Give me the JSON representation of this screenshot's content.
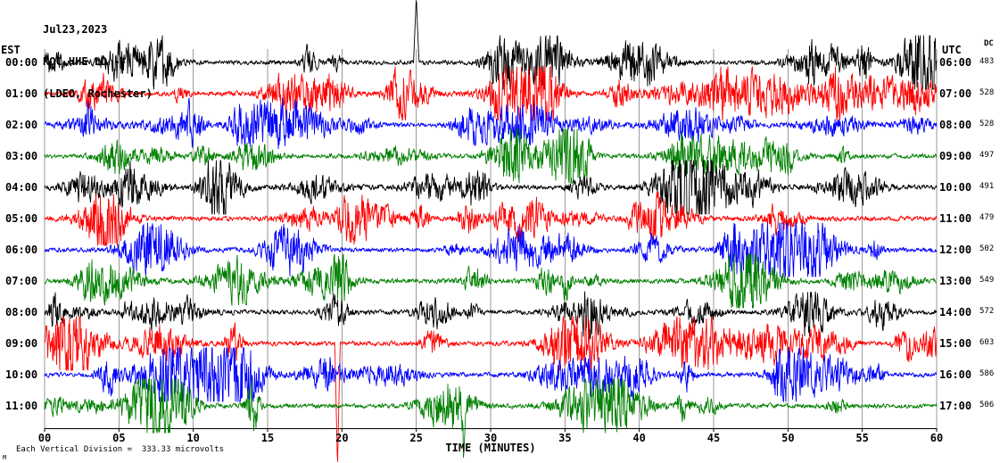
{
  "title": {
    "date": "Jul23,2023",
    "station": "ROC HHE LD --",
    "network": "(LDEO, Rochester)"
  },
  "axes": {
    "left_header": "EST",
    "right_header": "UTC",
    "dc_header": "DC",
    "xlabel": "TIME (MINUTES)",
    "x_ticks": [
      "00",
      "05",
      "10",
      "15",
      "20",
      "25",
      "30",
      "35",
      "40",
      "45",
      "50",
      "55",
      "60"
    ]
  },
  "footer": {
    "scale_note": "Each Vertical Division =  333.33 microvolts",
    "corner_mark": "M"
  },
  "colors": {
    "black": "#000000",
    "red": "#ff0000",
    "blue": "#0000ff",
    "green": "#008000"
  },
  "chart_data": {
    "type": "line",
    "subtype": "seismogram-helicorder",
    "title": "ROC HHE LD -- (LDEO, Rochester) Jul23,2023",
    "xlabel": "TIME (MINUTES)",
    "x_range_minutes": [
      0,
      60
    ],
    "x_tick_interval_minutes": 5,
    "minutes_per_row": 60,
    "vertical_division_microvolts": 333.33,
    "waveform_note": "Continuous high-frequency seismic noise with frequent burst events on every trace; exact sample values not resolvable from image.",
    "rows": [
      {
        "est": "00:00",
        "utc": "06:00",
        "dc": 483,
        "color": "black"
      },
      {
        "est": "01:00",
        "utc": "07:00",
        "dc": 528,
        "color": "red"
      },
      {
        "est": "02:00",
        "utc": "08:00",
        "dc": 528,
        "color": "blue"
      },
      {
        "est": "03:00",
        "utc": "09:00",
        "dc": 497,
        "color": "green"
      },
      {
        "est": "04:00",
        "utc": "10:00",
        "dc": 491,
        "color": "black"
      },
      {
        "est": "05:00",
        "utc": "11:00",
        "dc": 479,
        "color": "red"
      },
      {
        "est": "06:00",
        "utc": "12:00",
        "dc": 502,
        "color": "blue"
      },
      {
        "est": "07:00",
        "utc": "13:00",
        "dc": 549,
        "color": "green"
      },
      {
        "est": "08:00",
        "utc": "14:00",
        "dc": 572,
        "color": "black"
      },
      {
        "est": "09:00",
        "utc": "15:00",
        "dc": 603,
        "color": "red"
      },
      {
        "est": "10:00",
        "utc": "16:00",
        "dc": 586,
        "color": "blue"
      },
      {
        "est": "11:00",
        "utc": "17:00",
        "dc": 506,
        "color": "green"
      }
    ],
    "notable_spikes": [
      {
        "row_index": 0,
        "minute": 25.0,
        "direction": "up",
        "extent": "beyond_top"
      },
      {
        "row_index": 9,
        "minute": 19.7,
        "direction": "down",
        "extent": "beyond_bottom"
      },
      {
        "row_index": 11,
        "minute": 28.2,
        "direction": "down",
        "extent": "beyond_bottom"
      }
    ]
  }
}
